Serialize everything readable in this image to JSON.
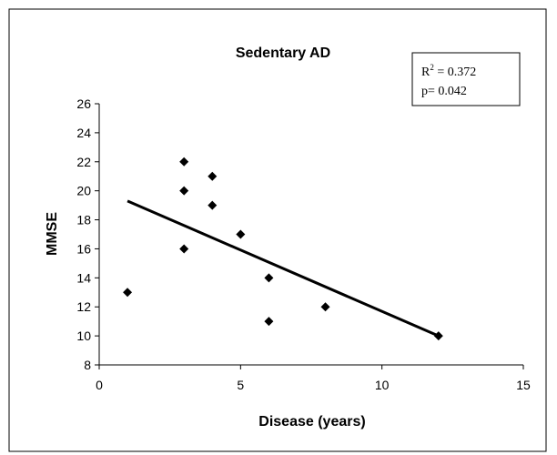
{
  "chart_data": {
    "type": "scatter",
    "title": "Sedentary AD",
    "xlabel": "Disease (years)",
    "ylabel": "MMSE",
    "xlim": [
      0,
      15
    ],
    "ylim": [
      8,
      26
    ],
    "x_ticks": [
      0,
      5,
      10,
      15
    ],
    "y_ticks": [
      8,
      10,
      12,
      14,
      16,
      18,
      20,
      22,
      24,
      26
    ],
    "grid": false,
    "marker": "diamond",
    "marker_color": "#000000",
    "points": [
      {
        "x": 1,
        "y": 13
      },
      {
        "x": 3,
        "y": 22
      },
      {
        "x": 3,
        "y": 20
      },
      {
        "x": 3,
        "y": 16
      },
      {
        "x": 4,
        "y": 21
      },
      {
        "x": 4,
        "y": 19
      },
      {
        "x": 5,
        "y": 17
      },
      {
        "x": 6,
        "y": 14
      },
      {
        "x": 6,
        "y": 11
      },
      {
        "x": 8,
        "y": 12
      },
      {
        "x": 12,
        "y": 10
      }
    ],
    "trendline": {
      "x": [
        1,
        12
      ],
      "y": [
        19.3,
        10
      ]
    },
    "annotation": {
      "r2_label": "R",
      "r2_sup": "2",
      "r2_value": " = 0.372",
      "p_text": "p= 0.042"
    }
  }
}
